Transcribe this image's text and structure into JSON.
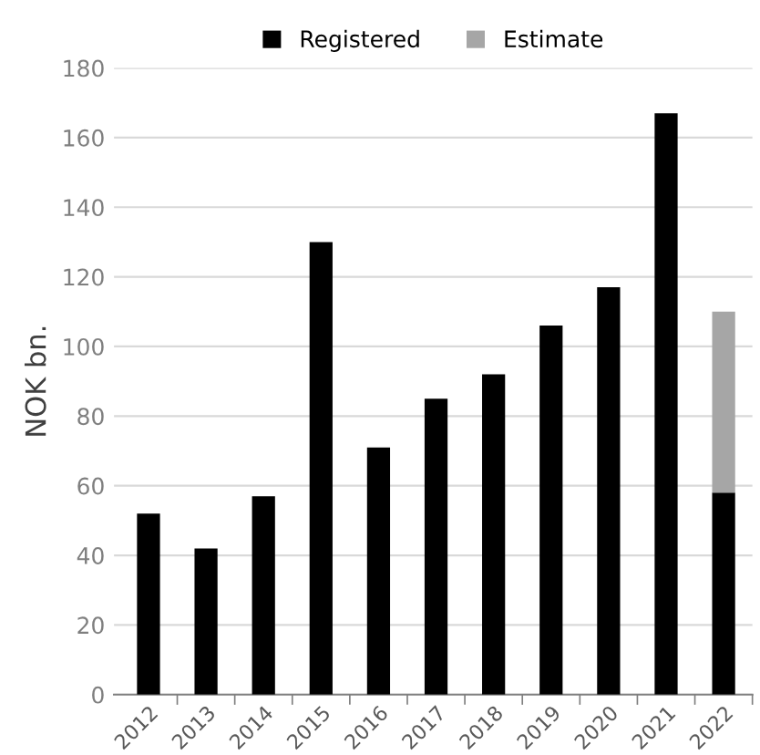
{
  "chart_data": {
    "type": "bar",
    "stacked": true,
    "ylabel": "NOK bn.",
    "categories": [
      "2012",
      "2013",
      "2014",
      "2015",
      "2016",
      "2017",
      "2018",
      "2019",
      "2020",
      "2021",
      "2022"
    ],
    "series": [
      {
        "name": "Registered",
        "color": "#000000",
        "values": [
          52,
          42,
          57,
          130,
          71,
          85,
          92,
          106,
          117,
          167,
          58
        ]
      },
      {
        "name": "Estimate",
        "color": "#a6a6a6",
        "values": [
          null,
          null,
          null,
          null,
          null,
          null,
          null,
          null,
          null,
          null,
          52
        ]
      }
    ],
    "ylim": [
      0,
      180
    ],
    "yticks": [
      0,
      20,
      40,
      60,
      80,
      100,
      120,
      140,
      160,
      180
    ],
    "grid": "y",
    "legend": "top"
  }
}
